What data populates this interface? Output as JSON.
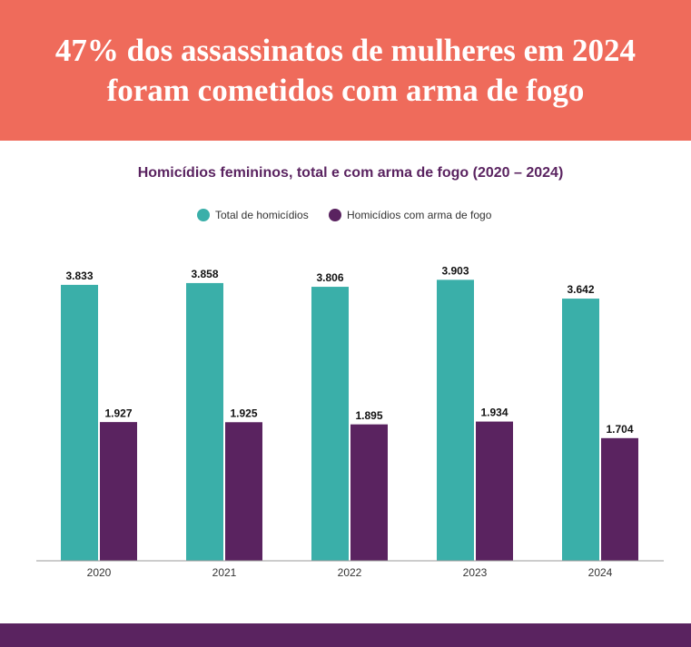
{
  "chart_data": {
    "type": "bar",
    "title": "47% dos assassinatos de mulheres em 2024 foram cometidos com arma de fogo",
    "subtitle": "Homicídios femininos, total e com arma de fogo (2020 – 2024)",
    "categories": [
      "2020",
      "2021",
      "2022",
      "2023",
      "2024"
    ],
    "series": [
      {
        "name": "Total de homicídios",
        "color": "#3aafa9",
        "values": [
          3833,
          3858,
          3806,
          3903,
          3642
        ],
        "value_labels": [
          "3.833",
          "3.858",
          "3.806",
          "3.903",
          "3.642"
        ]
      },
      {
        "name": "Homicídios com arma de fogo",
        "color": "#5a2360",
        "values": [
          1927,
          1925,
          1895,
          1934,
          1704
        ],
        "value_labels": [
          "1.927",
          "1.925",
          "1.895",
          "1.934",
          "1.704"
        ]
      }
    ],
    "ylim": [
      0,
      4500
    ]
  }
}
